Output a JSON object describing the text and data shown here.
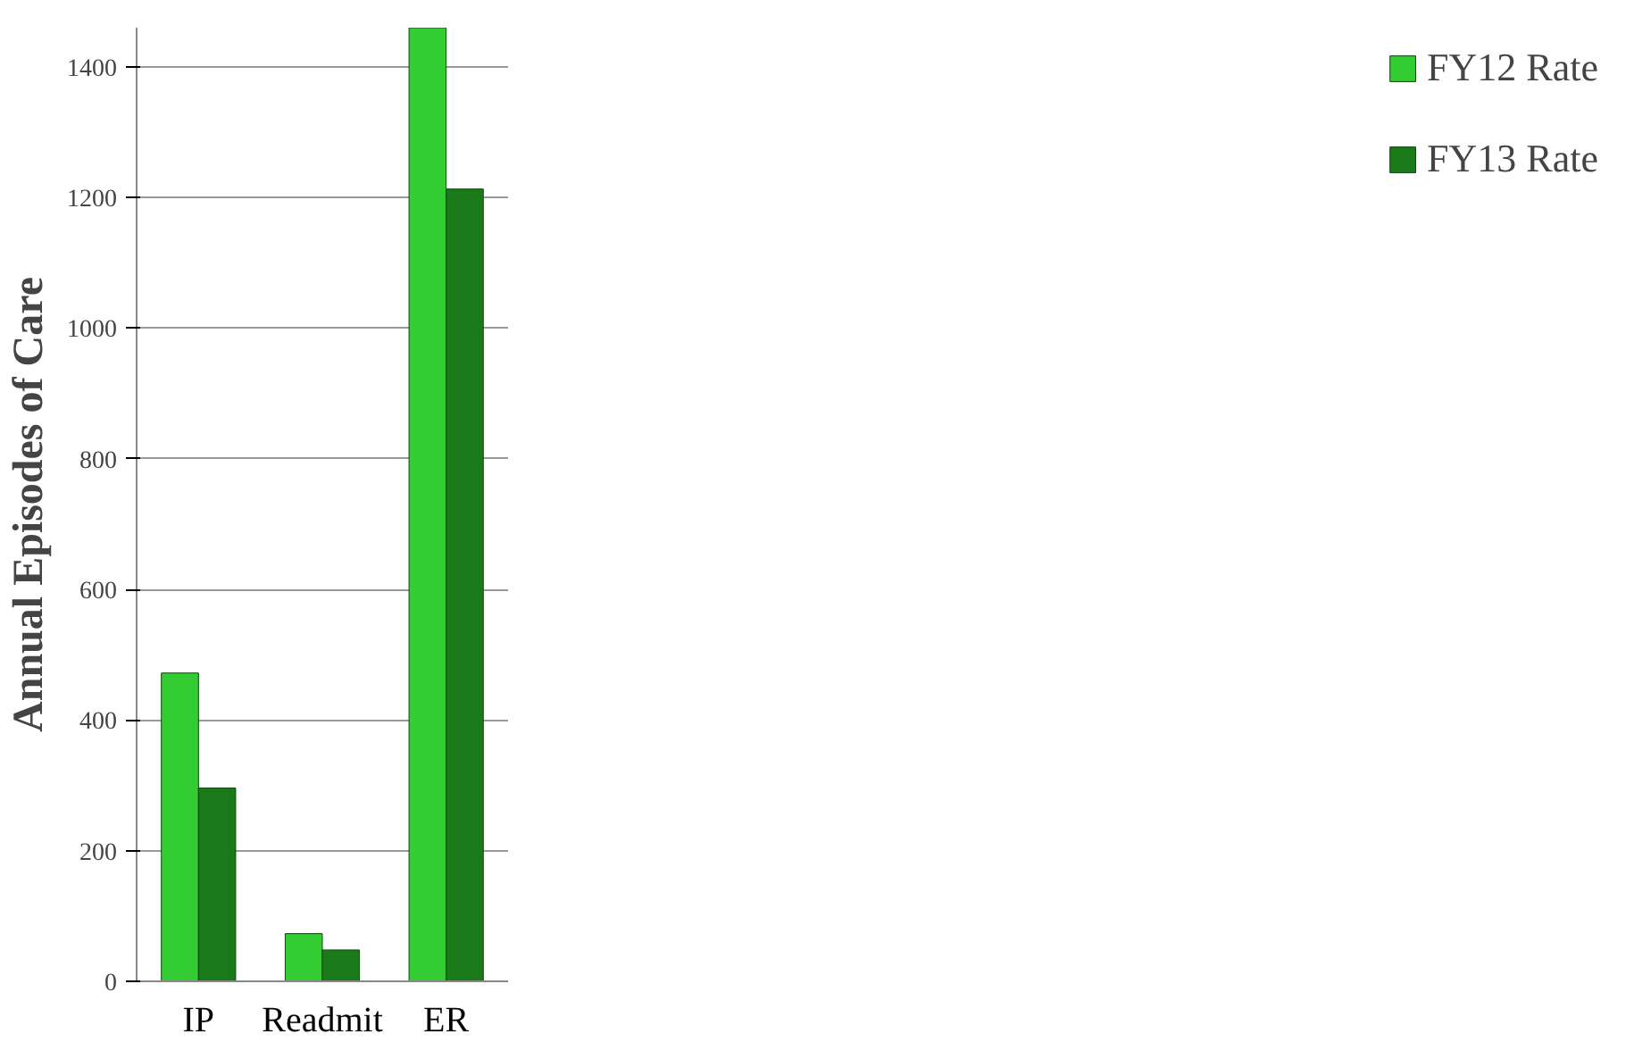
{
  "chart_data": {
    "type": "bar",
    "ylabel": "Annual Episodes of Care",
    "categories": [
      "IP",
      "Readmit",
      "ER"
    ],
    "series": [
      {
        "name": "FY12 Rate",
        "color": "#33cc33",
        "values": [
          472,
          73,
          1460
        ]
      },
      {
        "name": "FY13 Rate",
        "color": "#1a7a1a",
        "values": [
          296,
          48,
          1213
        ]
      }
    ],
    "ylim": [
      0,
      1460
    ],
    "yticks": [
      0,
      200,
      400,
      600,
      800,
      1000,
      1200,
      1400
    ],
    "grid": "y",
    "legend": "right"
  }
}
